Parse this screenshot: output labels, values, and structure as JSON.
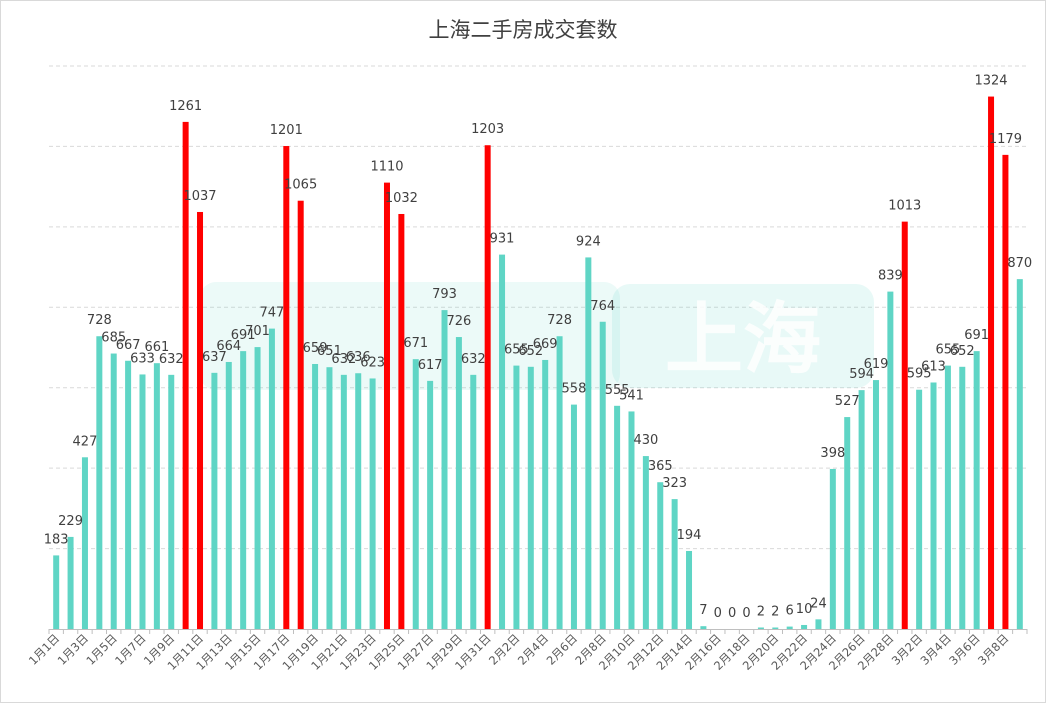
{
  "chart_data": {
    "type": "bar",
    "title": "上海二手房成交套数",
    "xlabel": "",
    "ylabel": "",
    "ylim": [
      0,
      1400
    ],
    "grid": true,
    "watermark": "上海",
    "colors": {
      "normal": "#5fd5c5",
      "highlight": "#ff0000",
      "grid": "#d9d9d9"
    },
    "categories": [
      "1月1日",
      "1月2日",
      "1月3日",
      "1月4日",
      "1月5日",
      "1月6日",
      "1月7日",
      "1月8日",
      "1月9日",
      "1月10日",
      "1月11日",
      "1月12日",
      "1月13日",
      "1月14日",
      "1月15日",
      "1月16日",
      "1月17日",
      "1月18日",
      "1月19日",
      "1月20日",
      "1月21日",
      "1月22日",
      "1月23日",
      "1月24日",
      "1月25日",
      "1月26日",
      "1月27日",
      "1月28日",
      "1月29日",
      "1月30日",
      "1月31日",
      "2月1日",
      "2月2日",
      "2月3日",
      "2月4日",
      "2月5日",
      "2月6日",
      "2月7日",
      "2月8日",
      "2月9日",
      "2月10日",
      "2月11日",
      "2月12日",
      "2月13日",
      "2月14日",
      "2月15日",
      "2月16日",
      "2月17日",
      "2月18日",
      "2月19日",
      "2月20日",
      "2月21日",
      "2月22日",
      "2月23日",
      "2月24日",
      "2月25日",
      "2月26日",
      "2月27日",
      "2月28日",
      "3月1日",
      "3月2日",
      "3月3日",
      "3月4日",
      "3月5日",
      "3月6日",
      "3月7日",
      "3月8日",
      "3月9日"
    ],
    "values": [
      183,
      229,
      427,
      728,
      685,
      667,
      633,
      661,
      632,
      1261,
      1037,
      637,
      664,
      691,
      701,
      747,
      1201,
      1065,
      659,
      651,
      632,
      636,
      623,
      1110,
      1032,
      671,
      617,
      793,
      726,
      632,
      1203,
      931,
      655,
      652,
      669,
      728,
      558,
      924,
      764,
      555,
      541,
      430,
      365,
      323,
      194,
      7,
      0,
      0,
      0,
      2,
      2,
      6,
      10,
      24,
      398,
      527,
      594,
      619,
      839,
      1013,
      595,
      613,
      655,
      652,
      691,
      1324,
      1179,
      870
    ],
    "highlight_indices": [
      9,
      10,
      16,
      17,
      23,
      24,
      30,
      59,
      65,
      66
    ],
    "tick_labels": [
      "1月1日",
      "1月3日",
      "1月5日",
      "1月7日",
      "1月9日",
      "1月11日",
      "1月13日",
      "1月15日",
      "1月17日",
      "1月19日",
      "1月21日",
      "1月23日",
      "1月25日",
      "1月27日",
      "1月29日",
      "1月31日",
      "2月2日",
      "2月4日",
      "2月6日",
      "2月8日",
      "2月10日",
      "2月12日",
      "2月14日",
      "2月16日",
      "2月18日",
      "2月20日",
      "2月22日",
      "2月24日",
      "2月26日",
      "2月28日",
      "3月2日",
      "3月4日",
      "3月6日",
      "3月8日"
    ]
  }
}
